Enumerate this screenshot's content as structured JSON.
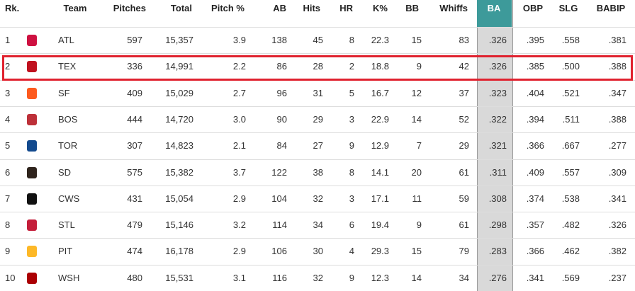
{
  "table": {
    "header": [
      "Rk.",
      "Team",
      "Pitches",
      "Total",
      "Pitch %",
      "AB",
      "Hits",
      "HR",
      "K%",
      "BB",
      "Whiffs",
      "BA",
      "OBP",
      "SLG",
      "BABIP"
    ],
    "rows": [
      [
        "1",
        "ATL",
        "597",
        "15,357",
        "3.9",
        "138",
        "45",
        "8",
        "22.3",
        "15",
        "83",
        ".326",
        ".395",
        ".558",
        ".381"
      ],
      [
        "2",
        "TEX",
        "336",
        "14,991",
        "2.2",
        "86",
        "28",
        "2",
        "18.8",
        "9",
        "42",
        ".326",
        ".385",
        ".500",
        ".388"
      ],
      [
        "3",
        "SF",
        "409",
        "15,029",
        "2.7",
        "96",
        "31",
        "5",
        "16.7",
        "12",
        "37",
        ".323",
        ".404",
        ".521",
        ".347"
      ],
      [
        "4",
        "BOS",
        "444",
        "14,720",
        "3.0",
        "90",
        "29",
        "3",
        "22.9",
        "14",
        "52",
        ".322",
        ".394",
        ".511",
        ".388"
      ],
      [
        "5",
        "TOR",
        "307",
        "14,823",
        "2.1",
        "84",
        "27",
        "9",
        "12.9",
        "7",
        "29",
        ".321",
        ".366",
        ".667",
        ".277"
      ],
      [
        "6",
        "SD",
        "575",
        "15,382",
        "3.7",
        "122",
        "38",
        "8",
        "14.1",
        "20",
        "61",
        ".311",
        ".409",
        ".557",
        ".309"
      ],
      [
        "7",
        "CWS",
        "431",
        "15,054",
        "2.9",
        "104",
        "32",
        "3",
        "17.1",
        "11",
        "59",
        ".308",
        ".374",
        ".538",
        ".341"
      ],
      [
        "8",
        "STL",
        "479",
        "15,146",
        "3.2",
        "114",
        "34",
        "6",
        "19.4",
        "9",
        "61",
        ".298",
        ".357",
        ".482",
        ".326"
      ],
      [
        "9",
        "PIT",
        "474",
        "16,178",
        "2.9",
        "106",
        "30",
        "4",
        "29.3",
        "15",
        "79",
        ".283",
        ".366",
        ".462",
        ".382"
      ],
      [
        "10",
        "WSH",
        "480",
        "15,531",
        "3.1",
        "116",
        "32",
        "9",
        "12.3",
        "14",
        "34",
        ".276",
        ".341",
        ".569",
        ".237"
      ]
    ]
  }
}
